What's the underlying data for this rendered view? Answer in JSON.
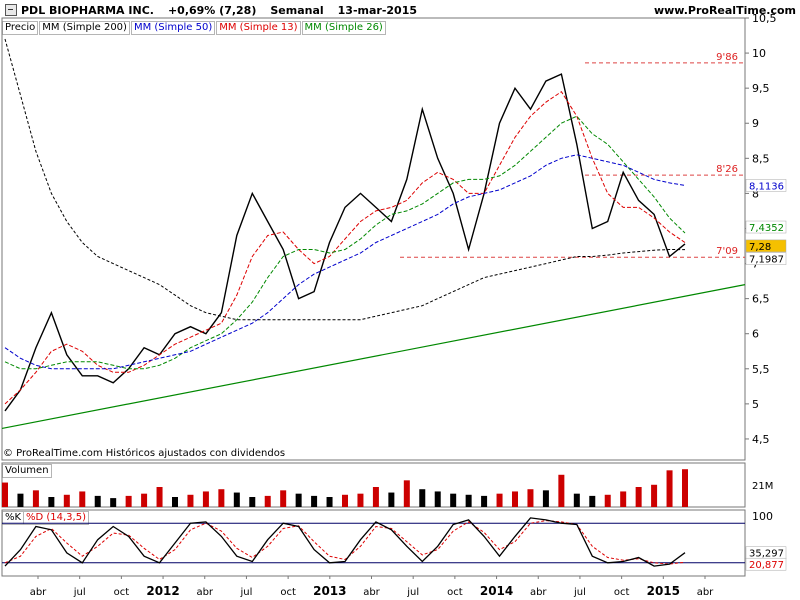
{
  "header": {
    "title": "PDL BIOPHARMA INC.",
    "change": "+0,69% (7,28)",
    "period": "Semanal",
    "date": "13-mar-2015",
    "site": "www.ProRealTime.com"
  },
  "indicators": [
    {
      "label": "Precio",
      "color": "#000000"
    },
    {
      "label": "MM (Simple 200)",
      "color": "#000000"
    },
    {
      "label": "MM (Simple 50)",
      "color": "#0000cc"
    },
    {
      "label": "MM (Simple 13)",
      "color": "#dd0000"
    },
    {
      "label": "MM (Simple 26)",
      "color": "#008800"
    }
  ],
  "copyright": "© ProRealTime.com Históricos ajustados con dividendos",
  "volume_panel": {
    "label": "Volumen",
    "axis_label": "21M"
  },
  "stochastic_panel": {
    "k_label": "%K",
    "d_label": "%D (14,3,5)",
    "axis_top": "100"
  },
  "chart_data": {
    "type": "line",
    "price_axis": {
      "ticks": [
        "10,5",
        "10",
        "9,5",
        "9",
        "8,5",
        "8",
        "7,5",
        "7",
        "6,5",
        "6",
        "5,5",
        "5",
        "4,5"
      ],
      "ylim": [
        4.2,
        10.5
      ]
    },
    "time_axis": [
      "abr",
      "jul",
      "oct",
      "2012",
      "abr",
      "jul",
      "oct",
      "2013",
      "abr",
      "jul",
      "oct",
      "2014",
      "abr",
      "jul",
      "oct",
      "2015",
      "abr"
    ],
    "price_labels": [
      {
        "value": "9'86",
        "y": 9.86
      },
      {
        "value": "8'26",
        "y": 8.26
      },
      {
        "value": "7'09",
        "y": 7.09
      }
    ],
    "axis_badges": [
      {
        "value": "8,1136",
        "y": 8.1136,
        "bg": "#ffffff",
        "fg": "#0000cc"
      },
      {
        "value": "7,4352",
        "y": 7.4352,
        "bg": "#ffffff",
        "fg": "#008800"
      },
      {
        "value": "7,28",
        "y": 7.28,
        "bg": "#f5c000",
        "fg": "#000000"
      },
      {
        "value": "7,1987",
        "y": 7.1987,
        "bg": "#ffffff",
        "fg": "#000000"
      }
    ],
    "series": [
      {
        "key": "price",
        "color": "#000000",
        "values": [
          4.9,
          5.2,
          5.8,
          6.3,
          5.7,
          5.4,
          5.4,
          5.3,
          5.5,
          5.8,
          5.7,
          6.0,
          6.1,
          6.0,
          6.3,
          7.4,
          8.0,
          7.6,
          7.2,
          6.5,
          6.6,
          7.3,
          7.8,
          8.0,
          7.8,
          7.6,
          8.2,
          9.2,
          8.5,
          8.0,
          7.2,
          8.0,
          9.0,
          9.5,
          9.2,
          9.6,
          9.7,
          8.7,
          7.5,
          7.6,
          8.3,
          7.9,
          7.7,
          7.1,
          7.28
        ]
      },
      {
        "key": "sma13",
        "color": "#dd0000",
        "values": [
          5.0,
          5.2,
          5.45,
          5.75,
          5.85,
          5.75,
          5.55,
          5.45,
          5.45,
          5.55,
          5.7,
          5.85,
          5.95,
          6.05,
          6.15,
          6.55,
          7.1,
          7.4,
          7.45,
          7.2,
          7.0,
          7.1,
          7.35,
          7.6,
          7.75,
          7.8,
          7.9,
          8.15,
          8.3,
          8.2,
          8.0,
          8.0,
          8.4,
          8.8,
          9.1,
          9.3,
          9.45,
          9.1,
          8.5,
          8.0,
          7.8,
          7.8,
          7.65,
          7.45,
          7.3
        ]
      },
      {
        "key": "sma26",
        "color": "#008800",
        "values": [
          5.6,
          5.5,
          5.5,
          5.55,
          5.6,
          5.6,
          5.6,
          5.55,
          5.5,
          5.5,
          5.55,
          5.65,
          5.8,
          5.9,
          6.0,
          6.2,
          6.45,
          6.8,
          7.1,
          7.2,
          7.2,
          7.15,
          7.2,
          7.35,
          7.55,
          7.7,
          7.75,
          7.85,
          8.0,
          8.15,
          8.2,
          8.2,
          8.25,
          8.4,
          8.6,
          8.8,
          9.0,
          9.1,
          8.85,
          8.7,
          8.45,
          8.2,
          7.95,
          7.65,
          7.4352
        ]
      },
      {
        "key": "sma50",
        "color": "#0000cc",
        "values": [
          5.8,
          5.65,
          5.55,
          5.5,
          5.5,
          5.5,
          5.5,
          5.5,
          5.55,
          5.6,
          5.65,
          5.7,
          5.75,
          5.85,
          5.95,
          6.05,
          6.15,
          6.3,
          6.5,
          6.7,
          6.85,
          6.95,
          7.05,
          7.15,
          7.3,
          7.4,
          7.5,
          7.6,
          7.7,
          7.85,
          7.95,
          8.0,
          8.05,
          8.15,
          8.25,
          8.4,
          8.5,
          8.55,
          8.5,
          8.45,
          8.4,
          8.3,
          8.2,
          8.15,
          8.1136
        ]
      },
      {
        "key": "sma200",
        "color": "#000000",
        "dashed": true,
        "values": [
          10.2,
          9.4,
          8.6,
          8.0,
          7.6,
          7.3,
          7.1,
          7.0,
          6.9,
          6.8,
          6.7,
          6.55,
          6.4,
          6.3,
          6.25,
          6.2,
          6.2,
          6.2,
          6.2,
          6.2,
          6.2,
          6.2,
          6.2,
          6.2,
          6.25,
          6.3,
          6.35,
          6.4,
          6.5,
          6.6,
          6.7,
          6.8,
          6.85,
          6.9,
          6.95,
          7.0,
          7.05,
          7.1,
          7.1,
          7.12,
          7.15,
          7.17,
          7.19,
          7.2,
          7.1987
        ]
      }
    ],
    "trendline": {
      "from": 4.65,
      "to": 6.7,
      "color": "#008800"
    },
    "volume": {
      "values": [
        22,
        12,
        15,
        9,
        11,
        14,
        10,
        8,
        10,
        12,
        18,
        9,
        11,
        14,
        16,
        13,
        9,
        10,
        15,
        12,
        10,
        9,
        11,
        12,
        18,
        13,
        24,
        16,
        14,
        12,
        11,
        10,
        12,
        14,
        16,
        15,
        29,
        12,
        10,
        11,
        14,
        18,
        20,
        33,
        34
      ]
    },
    "stochastic": {
      "levels": [
        80,
        20
      ],
      "values_k": [
        15,
        40,
        75,
        70,
        35,
        20,
        55,
        75,
        60,
        30,
        20,
        50,
        80,
        82,
        60,
        30,
        22,
        55,
        80,
        75,
        40,
        20,
        22,
        55,
        82,
        70,
        45,
        22,
        45,
        78,
        85,
        60,
        30,
        60,
        88,
        85,
        80,
        78,
        30,
        20,
        22,
        28,
        15,
        18,
        35.297
      ],
      "values_d": [
        20,
        30,
        60,
        72,
        50,
        30,
        45,
        65,
        62,
        42,
        25,
        40,
        70,
        80,
        68,
        42,
        28,
        45,
        72,
        76,
        52,
        30,
        25,
        45,
        75,
        72,
        52,
        32,
        40,
        68,
        82,
        66,
        40,
        52,
        80,
        84,
        82,
        78,
        45,
        28,
        24,
        26,
        20,
        18,
        20.877
      ],
      "badges": [
        {
          "value": "35,297",
          "y": 35.297,
          "bg": "#ffffff",
          "fg": "#000000"
        },
        {
          "value": "20,877",
          "y": 20.877,
          "bg": "#ffffff",
          "fg": "#dd0000"
        }
      ]
    }
  }
}
